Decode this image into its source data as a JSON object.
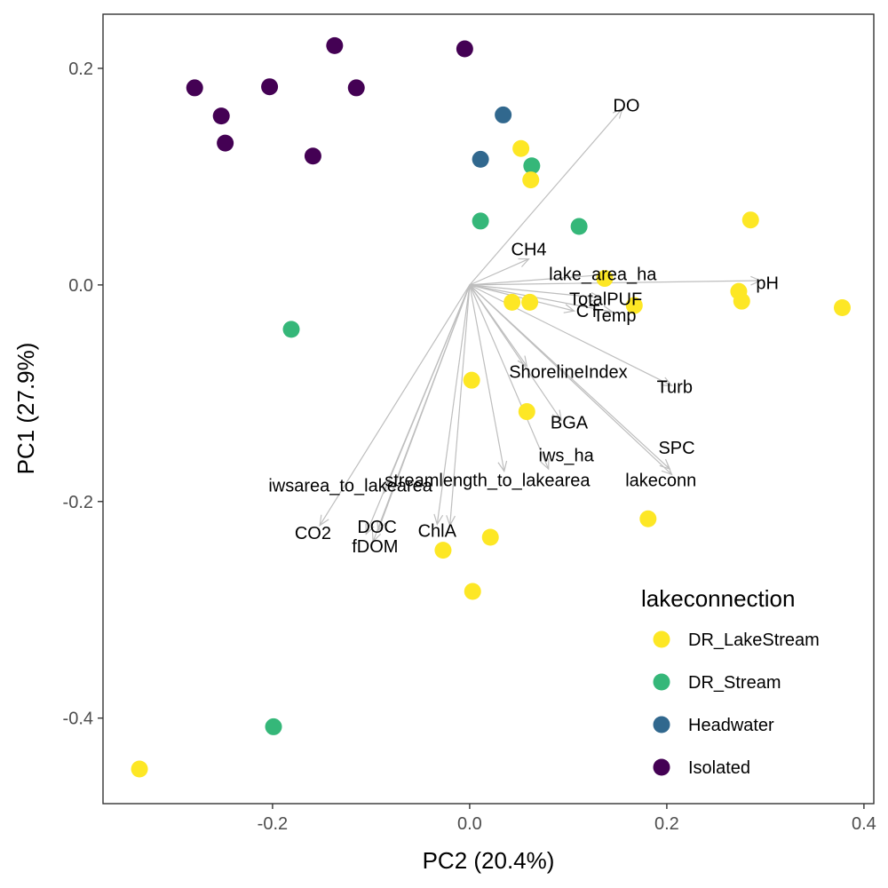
{
  "chart_data": {
    "type": "scatter",
    "subtype": "pca-biplot",
    "xlabel": "PC2 (20.4%)",
    "ylabel": "PC1 (27.9%)",
    "xlim": [
      -0.372,
      0.41
    ],
    "ylim": [
      -0.479,
      0.25
    ],
    "xticks": [
      -0.2,
      0.0,
      0.2,
      0.4
    ],
    "xtick_labels": [
      "-0.2",
      "0.0",
      "0.2",
      "0.4"
    ],
    "yticks": [
      -0.4,
      -0.2,
      0.0,
      0.2
    ],
    "ytick_labels": [
      "-0.4",
      "-0.2",
      "0.0",
      "0.2"
    ],
    "grid": false,
    "legend": {
      "title": "lakeconnection",
      "placement": "bottom-right-inside",
      "entries": [
        {
          "name": "DR_LakeStream",
          "color": "#FDE725"
        },
        {
          "name": "DR_Stream",
          "color": "#35B779"
        },
        {
          "name": "Headwater",
          "color": "#31688E"
        },
        {
          "name": "Isolated",
          "color": "#440154"
        }
      ]
    },
    "series": [
      {
        "name": "Isolated",
        "color": "#440154",
        "points": [
          [
            -0.279,
            0.182
          ],
          [
            -0.252,
            0.156
          ],
          [
            -0.248,
            0.131
          ],
          [
            -0.203,
            0.183
          ],
          [
            -0.137,
            0.221
          ],
          [
            -0.115,
            0.182
          ],
          [
            -0.159,
            0.119
          ],
          [
            -0.005,
            0.218
          ]
        ]
      },
      {
        "name": "Headwater",
        "color": "#31688E",
        "points": [
          [
            0.034,
            0.157
          ],
          [
            0.011,
            0.116
          ]
        ]
      },
      {
        "name": "DR_Stream",
        "color": "#35B779",
        "points": [
          [
            0.063,
            0.11
          ],
          [
            0.011,
            0.059
          ],
          [
            0.111,
            0.054
          ],
          [
            -0.181,
            -0.041
          ],
          [
            -0.199,
            -0.408
          ]
        ]
      },
      {
        "name": "DR_LakeStream",
        "color": "#FDE725",
        "points": [
          [
            0.052,
            0.126
          ],
          [
            0.062,
            0.097
          ],
          [
            0.285,
            0.06
          ],
          [
            0.137,
            0.006
          ],
          [
            0.273,
            -0.006
          ],
          [
            0.276,
            -0.015
          ],
          [
            0.378,
            -0.021
          ],
          [
            0.167,
            -0.019
          ],
          [
            0.043,
            -0.016
          ],
          [
            0.061,
            -0.016
          ],
          [
            0.002,
            -0.088
          ],
          [
            0.058,
            -0.117
          ],
          [
            0.181,
            -0.216
          ],
          [
            0.021,
            -0.233
          ],
          [
            -0.027,
            -0.245
          ],
          [
            0.003,
            -0.283
          ],
          [
            -0.335,
            -0.447
          ]
        ]
      }
    ],
    "vectors_color": "#BEBEBE",
    "vectors": [
      {
        "label": "DO",
        "x": 0.155,
        "y": 0.163,
        "lx": 0.159,
        "ly": 0.166
      },
      {
        "label": "CH4",
        "x": 0.06,
        "y": 0.024,
        "lx": 0.06,
        "ly": 0.033
      },
      {
        "label": "lake_area_ha",
        "x": 0.145,
        "y": 0.01,
        "lx": 0.135,
        "ly": 0.01
      },
      {
        "label": "pH",
        "x": 0.295,
        "y": 0.004,
        "lx": 0.302,
        "ly": 0.002
      },
      {
        "label": "TotalPUF",
        "x": 0.133,
        "y": -0.012,
        "lx": 0.138,
        "ly": -0.013
      },
      {
        "label": "CT",
        "x": 0.106,
        "y": -0.024,
        "lx": 0.12,
        "ly": -0.024
      },
      {
        "label": "Temp",
        "x": 0.145,
        "y": -0.025,
        "lx": 0.147,
        "ly": -0.028
      },
      {
        "label": "ShorelineIndex",
        "x": 0.058,
        "y": -0.075,
        "lx": 0.1,
        "ly": -0.08
      },
      {
        "label": "Turb",
        "x": 0.205,
        "y": -0.093,
        "lx": 0.208,
        "ly": -0.094
      },
      {
        "label": "BGA",
        "x": 0.093,
        "y": -0.125,
        "lx": 0.101,
        "ly": -0.127
      },
      {
        "label": "SPC",
        "x": 0.205,
        "y": -0.175,
        "lx": 0.21,
        "ly": -0.15
      },
      {
        "label": "iws_ha",
        "x": 0.08,
        "y": -0.17,
        "lx": 0.098,
        "ly": -0.157
      },
      {
        "label": "lakeconn",
        "x": 0.203,
        "y": -0.17,
        "lx": 0.194,
        "ly": -0.18
      },
      {
        "label": "streamlength_to_lakearea",
        "x": 0.035,
        "y": -0.172,
        "lx": 0.018,
        "ly": -0.18
      },
      {
        "label": "iwsarea_to_lakearea",
        "x": -0.087,
        "y": -0.192,
        "lx": -0.121,
        "ly": -0.185
      },
      {
        "label": "CO2",
        "x": -0.152,
        "y": -0.222,
        "lx": -0.159,
        "ly": -0.229
      },
      {
        "label": "DOC",
        "x": -0.093,
        "y": -0.227,
        "lx": -0.094,
        "ly": -0.223
      },
      {
        "label": "fDOM",
        "x": -0.098,
        "y": -0.237,
        "lx": -0.096,
        "ly": -0.241
      },
      {
        "label": "ChlA",
        "x": -0.033,
        "y": -0.221,
        "lx": -0.033,
        "ly": -0.227
      },
      {
        "label": "",
        "x": -0.02,
        "y": -0.222
      },
      {
        "label": "",
        "x": -0.105,
        "y": -0.23
      }
    ]
  }
}
